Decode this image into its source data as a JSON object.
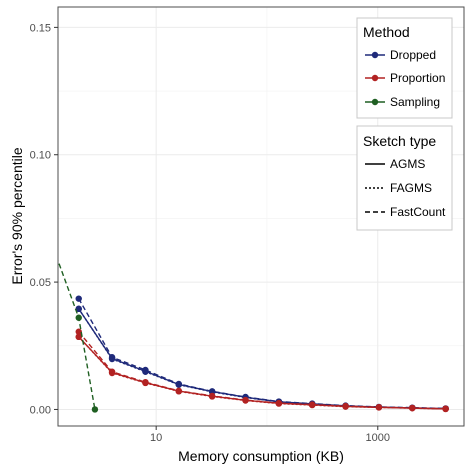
{
  "chart_data": {
    "type": "line",
    "title": "",
    "xlabel": "Memory consumption (KB)",
    "ylabel": "Error's 90% percentile",
    "x_scale": "log10",
    "xlim": [
      1.3,
      6000
    ],
    "ylim": [
      -0.0065,
      0.158
    ],
    "x_ticks": [
      10,
      1000
    ],
    "x_tick_labels": [
      "10",
      "1000"
    ],
    "y_ticks": [
      0,
      0.05,
      0.1,
      0.15
    ],
    "y_tick_labels": [
      "0.00",
      "0.05",
      "0.10",
      "0.15"
    ],
    "grid": true,
    "legend_position": "top-right",
    "legends": [
      {
        "title": "Method",
        "entries": [
          {
            "label": "Dropped",
            "color": "#1f2a7a"
          },
          {
            "label": "Proportion",
            "color": "#b22222"
          },
          {
            "label": "Sampling",
            "color": "#1f5f22"
          }
        ]
      },
      {
        "title": "Sketch type",
        "entries": [
          {
            "label": "AGMS",
            "dash": "solid"
          },
          {
            "label": "FAGMS",
            "dash": "dotted"
          },
          {
            "label": "FastCount",
            "dash": "dashed"
          }
        ]
      }
    ],
    "series": [
      {
        "method": "Dropped",
        "sketch": "AGMS",
        "color": "#1f2a7a",
        "dash": "solid",
        "x": [
          2,
          4,
          8,
          16,
          32,
          64,
          128,
          256,
          512,
          1024,
          2048,
          4096
        ],
        "y": [
          0.0395,
          0.02,
          0.015,
          0.0098,
          0.007,
          0.0048,
          0.003,
          0.0022,
          0.0014,
          0.0009,
          0.0006,
          0.0003
        ]
      },
      {
        "method": "Dropped",
        "sketch": "FAGMS",
        "color": "#1f2a7a",
        "dash": "dotted",
        "x": [
          2,
          4,
          8,
          16,
          32,
          64,
          128,
          256,
          512,
          1024,
          2048,
          4096
        ],
        "y": [
          0.0395,
          0.0198,
          0.0148,
          0.0097,
          0.0069,
          0.0047,
          0.0029,
          0.0021,
          0.0013,
          0.0009,
          0.0006,
          0.0003
        ]
      },
      {
        "method": "Dropped",
        "sketch": "FastCount",
        "color": "#1f2a7a",
        "dash": "dashed",
        "x": [
          2,
          4,
          8,
          16,
          32,
          64,
          128,
          256,
          512,
          1024,
          2048,
          4096
        ],
        "y": [
          0.0435,
          0.0205,
          0.0155,
          0.01,
          0.0071,
          0.0049,
          0.0031,
          0.0023,
          0.0015,
          0.001,
          0.0007,
          0.0004
        ]
      },
      {
        "method": "Proportion",
        "sketch": "AGMS",
        "color": "#b22222",
        "dash": "solid",
        "x": [
          2,
          4,
          8,
          16,
          32,
          64,
          128,
          256,
          512,
          1024,
          2048,
          4096
        ],
        "y": [
          0.0285,
          0.0145,
          0.0105,
          0.0072,
          0.0052,
          0.0036,
          0.0024,
          0.0018,
          0.0012,
          0.0008,
          0.0005,
          0.0002
        ]
      },
      {
        "method": "Proportion",
        "sketch": "FAGMS",
        "color": "#b22222",
        "dash": "dotted",
        "x": [
          2,
          4,
          8,
          16,
          32,
          64,
          128,
          256,
          512,
          1024,
          2048,
          4096
        ],
        "y": [
          0.0285,
          0.0143,
          0.0104,
          0.0071,
          0.0051,
          0.0035,
          0.0023,
          0.0017,
          0.0011,
          0.0008,
          0.0005,
          0.0002
        ]
      },
      {
        "method": "Proportion",
        "sketch": "FastCount",
        "color": "#b22222",
        "dash": "dashed",
        "x": [
          2,
          4,
          8,
          16,
          32,
          64,
          128,
          256,
          512,
          1024,
          2048,
          4096
        ],
        "y": [
          0.0305,
          0.0148,
          0.0107,
          0.0073,
          0.0053,
          0.0037,
          0.0025,
          0.0019,
          0.0013,
          0.0009,
          0.0006,
          0.0003
        ]
      },
      {
        "method": "Sampling",
        "sketch": "FastCount",
        "color": "#1f5f22",
        "dash": "dashed",
        "x": [
          1.0,
          2,
          2.8
        ],
        "y": [
          0.072,
          0.036,
          0.0
        ]
      }
    ]
  }
}
